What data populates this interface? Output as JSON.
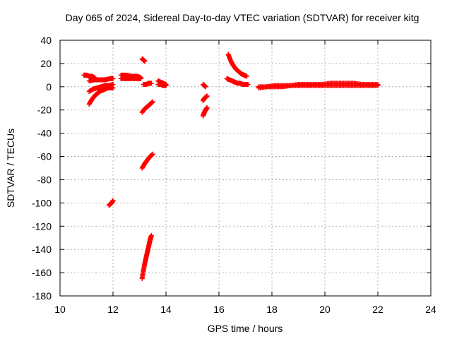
{
  "chart_data": {
    "type": "scatter",
    "title": "Day 065 of 2024, Sidereal Day-to-day VTEC variation (SDTVAR) for receiver kitg",
    "xlabel": "GPS time / hours",
    "ylabel": "SDTVAR / TECUs",
    "xlim": [
      10,
      24
    ],
    "ylim": [
      -180,
      40
    ],
    "xticks": [
      "10",
      "12",
      "14",
      "16",
      "18",
      "20",
      "22",
      "24"
    ],
    "yticks": [
      "40",
      "20",
      "0",
      "-20",
      "-40",
      "-60",
      "-80",
      "-100",
      "-120",
      "-140",
      "-160",
      "-180"
    ],
    "grid": true,
    "marker": "plus",
    "color": "#ff0000",
    "segments": [
      {
        "x": [
          10.9,
          11.0,
          11.1,
          11.2,
          11.3
        ],
        "y": [
          10,
          10,
          9,
          9,
          8
        ]
      },
      {
        "x": [
          11.1,
          11.3,
          11.5,
          11.7,
          11.9,
          12.0
        ],
        "y": [
          5,
          6,
          6,
          6,
          7,
          7
        ]
      },
      {
        "x": [
          11.1,
          11.2,
          11.3,
          11.4,
          11.5,
          11.6,
          11.7,
          11.8,
          11.9,
          12.0
        ],
        "y": [
          -15,
          -11,
          -8,
          -6,
          -4,
          -3,
          -2,
          -1,
          -1,
          -1
        ]
      },
      {
        "x": [
          11.1,
          11.25,
          11.4,
          11.55,
          11.7,
          11.85,
          12.0
        ],
        "y": [
          -4,
          -2,
          -1,
          0,
          1,
          1,
          2
        ]
      },
      {
        "x": [
          11.85,
          11.9,
          11.95,
          12.0
        ],
        "y": [
          -102,
          -101,
          -100,
          -98
        ]
      },
      {
        "x": [
          12.3,
          12.5,
          12.7,
          12.9,
          13.05
        ],
        "y": [
          10,
          10,
          9,
          9,
          8
        ]
      },
      {
        "x": [
          12.3,
          12.5,
          12.7,
          12.9,
          13.05
        ],
        "y": [
          7,
          7,
          7,
          7,
          7
        ]
      },
      {
        "x": [
          13.1,
          13.15,
          13.2
        ],
        "y": [
          24,
          23,
          22
        ]
      },
      {
        "x": [
          13.15,
          13.25,
          13.35,
          13.45
        ],
        "y": [
          2,
          2,
          3,
          3
        ]
      },
      {
        "x": [
          13.1,
          13.2,
          13.3,
          13.4,
          13.5
        ],
        "y": [
          -22,
          -19,
          -17,
          -15,
          -13
        ]
      },
      {
        "x": [
          13.1,
          13.2,
          13.3,
          13.4,
          13.5
        ],
        "y": [
          -70,
          -66,
          -63,
          -60,
          -58
        ]
      },
      {
        "x": [
          13.1,
          13.15,
          13.2,
          13.25,
          13.3,
          13.35,
          13.4,
          13.45
        ],
        "y": [
          -165,
          -158,
          -152,
          -147,
          -142,
          -137,
          -132,
          -128
        ]
      },
      {
        "x": [
          13.7,
          13.8,
          13.9,
          14.0
        ],
        "y": [
          5,
          4,
          3,
          2
        ]
      },
      {
        "x": [
          13.7,
          13.8,
          13.9,
          14.0
        ],
        "y": [
          2,
          2,
          1,
          1
        ]
      },
      {
        "x": [
          15.4,
          15.45,
          15.5
        ],
        "y": [
          2,
          1,
          0
        ]
      },
      {
        "x": [
          15.4,
          15.45,
          15.5,
          15.55
        ],
        "y": [
          -12,
          -10,
          -9,
          -8
        ]
      },
      {
        "x": [
          15.4,
          15.45,
          15.5,
          15.55
        ],
        "y": [
          -25,
          -22,
          -20,
          -18
        ]
      },
      {
        "x": [
          16.35,
          16.45,
          16.55,
          16.65,
          16.75,
          16.85,
          16.95,
          17.05
        ],
        "y": [
          28,
          22,
          18,
          15,
          13,
          11,
          10,
          9
        ]
      },
      {
        "x": [
          16.3,
          16.4,
          16.5,
          16.6,
          16.7,
          16.8,
          16.9,
          17.0,
          17.1
        ],
        "y": [
          7,
          6,
          5,
          4,
          3,
          3,
          2,
          2,
          2
        ]
      },
      {
        "x": [
          17.5,
          17.8,
          18.1,
          18.4,
          18.7,
          19.0,
          19.3,
          19.6,
          19.9,
          20.2,
          20.5,
          20.8,
          21.1,
          21.4,
          21.7,
          22.0
        ],
        "y": [
          0,
          0,
          1,
          1,
          1,
          2,
          2,
          2,
          2,
          3,
          3,
          3,
          3,
          2,
          2,
          2
        ]
      },
      {
        "x": [
          17.5,
          17.8,
          18.1,
          18.4,
          18.7,
          19.0,
          19.3,
          19.6,
          19.9,
          20.2,
          20.5,
          20.8,
          21.1,
          21.4,
          21.7,
          22.0
        ],
        "y": [
          -1,
          0,
          0,
          0,
          1,
          1,
          1,
          1,
          1,
          1,
          1,
          1,
          1,
          1,
          1,
          1
        ]
      }
    ]
  }
}
